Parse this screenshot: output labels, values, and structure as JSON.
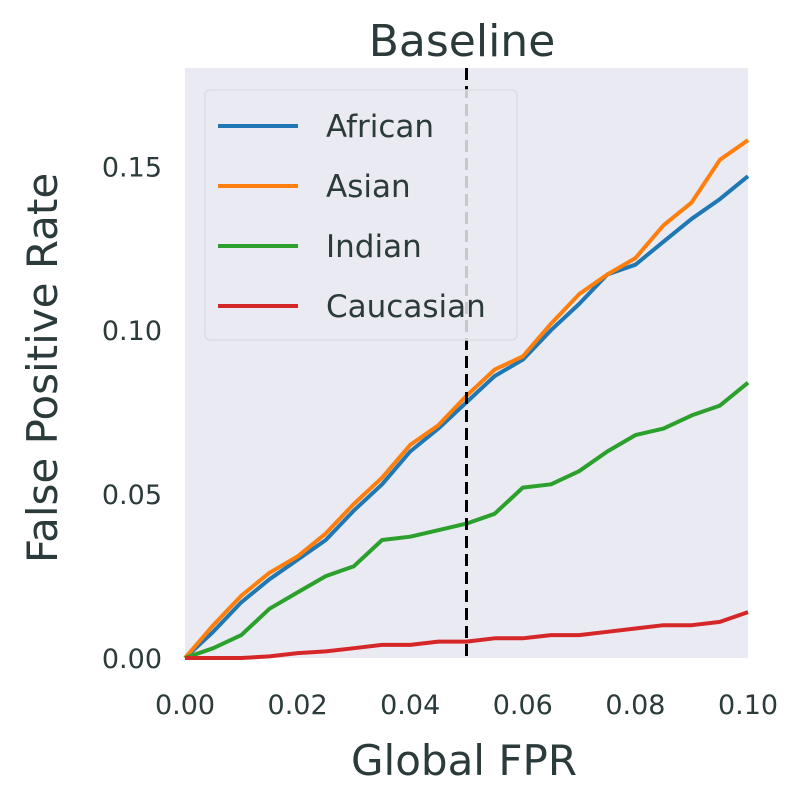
{
  "chart_data": {
    "type": "line",
    "title": "Baseline",
    "xlabel": "Global FPR",
    "ylabel": "False Positive Rate",
    "xlim": [
      0.0,
      0.1
    ],
    "ylim": [
      0.0,
      0.18
    ],
    "xticks": [
      0.0,
      0.02,
      0.04,
      0.06,
      0.08,
      0.1
    ],
    "xtick_labels": [
      "0.00",
      "0.02",
      "0.04",
      "0.06",
      "0.08",
      "0.10"
    ],
    "yticks": [
      0.0,
      0.05,
      0.1,
      0.15
    ],
    "ytick_labels": [
      "0.00",
      "0.05",
      "0.10",
      "0.15"
    ],
    "grid": false,
    "background": "#eaeaf2",
    "legend_position": "upper-left",
    "reference_line": {
      "x": 0.05,
      "style": "dashed",
      "color": "#000000"
    },
    "series": [
      {
        "name": "African",
        "color": "#1f77b4",
        "x": [
          0.0,
          0.005,
          0.01,
          0.015,
          0.02,
          0.025,
          0.03,
          0.035,
          0.04,
          0.045,
          0.05,
          0.055,
          0.06,
          0.065,
          0.07,
          0.075,
          0.08,
          0.085,
          0.09,
          0.095,
          0.1
        ],
        "y": [
          0.0,
          0.008,
          0.017,
          0.024,
          0.03,
          0.036,
          0.045,
          0.053,
          0.063,
          0.07,
          0.078,
          0.086,
          0.091,
          0.1,
          0.108,
          0.117,
          0.12,
          0.127,
          0.134,
          0.14,
          0.147
        ]
      },
      {
        "name": "Asian",
        "color": "#ff7f0e",
        "x": [
          0.0,
          0.005,
          0.01,
          0.015,
          0.02,
          0.025,
          0.03,
          0.035,
          0.04,
          0.045,
          0.05,
          0.055,
          0.06,
          0.065,
          0.07,
          0.075,
          0.08,
          0.085,
          0.09,
          0.095,
          0.1
        ],
        "y": [
          0.0,
          0.01,
          0.019,
          0.026,
          0.031,
          0.038,
          0.047,
          0.055,
          0.065,
          0.071,
          0.08,
          0.088,
          0.092,
          0.102,
          0.111,
          0.117,
          0.122,
          0.132,
          0.139,
          0.152,
          0.158
        ]
      },
      {
        "name": "Indian",
        "color": "#2ca02c",
        "x": [
          0.0,
          0.005,
          0.01,
          0.015,
          0.02,
          0.025,
          0.03,
          0.035,
          0.04,
          0.045,
          0.05,
          0.055,
          0.06,
          0.065,
          0.07,
          0.075,
          0.08,
          0.085,
          0.09,
          0.095,
          0.1
        ],
        "y": [
          0.0,
          0.003,
          0.007,
          0.015,
          0.02,
          0.025,
          0.028,
          0.036,
          0.037,
          0.039,
          0.041,
          0.044,
          0.052,
          0.053,
          0.057,
          0.063,
          0.068,
          0.07,
          0.074,
          0.077,
          0.084
        ]
      },
      {
        "name": "Caucasian",
        "color": "#d62728",
        "x": [
          0.0,
          0.005,
          0.01,
          0.015,
          0.02,
          0.025,
          0.03,
          0.035,
          0.04,
          0.045,
          0.05,
          0.055,
          0.06,
          0.065,
          0.07,
          0.075,
          0.08,
          0.085,
          0.09,
          0.095,
          0.1
        ],
        "y": [
          0.0,
          0.0,
          0.0,
          0.0005,
          0.0015,
          0.002,
          0.003,
          0.004,
          0.004,
          0.005,
          0.005,
          0.006,
          0.006,
          0.007,
          0.007,
          0.008,
          0.009,
          0.01,
          0.01,
          0.011,
          0.014
        ]
      }
    ]
  }
}
